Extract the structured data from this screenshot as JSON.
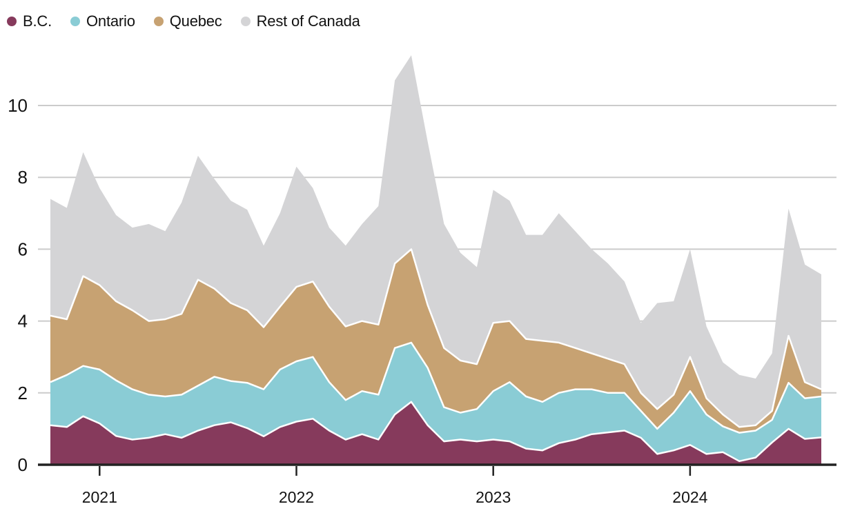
{
  "legend": {
    "items": [
      {
        "label": "B.C.",
        "color": "#863a5c"
      },
      {
        "label": "Ontario",
        "color": "#8accd5"
      },
      {
        "label": "Quebec",
        "color": "#c7a272"
      },
      {
        "label": "Rest of Canada",
        "color": "#d4d4d6"
      }
    ]
  },
  "chart_data": {
    "type": "area",
    "stacked": true,
    "title": "",
    "xlabel": "",
    "ylabel": "",
    "ylim": [
      0,
      11.5
    ],
    "yticks": [
      0,
      2,
      4,
      6,
      8,
      10
    ],
    "grid": true,
    "legend_position": "top-left",
    "background": "#ffffff",
    "gridline_color": "#cbcbcb",
    "axis_color": "#222222",
    "text_color": "#131313",
    "x_ticks": [
      {
        "label": "2021",
        "month_index": 3
      },
      {
        "label": "2022",
        "month_index": 15
      },
      {
        "label": "2023",
        "month_index": 27
      },
      {
        "label": "2024",
        "month_index": 39
      }
    ],
    "months": [
      "Oct 2020",
      "Nov 2020",
      "Dec 2020",
      "Jan 2021",
      "Feb 2021",
      "Mar 2021",
      "Apr 2021",
      "May 2021",
      "Jun 2021",
      "Jul 2021",
      "Aug 2021",
      "Sep 2021",
      "Oct 2021",
      "Nov 2021",
      "Dec 2021",
      "Jan 2022",
      "Feb 2022",
      "Mar 2022",
      "Apr 2022",
      "May 2022",
      "Jun 2022",
      "Jul 2022",
      "Aug 2022",
      "Sep 2022",
      "Oct 2022",
      "Nov 2022",
      "Dec 2022",
      "Jan 2023",
      "Feb 2023",
      "Mar 2023",
      "Apr 2023",
      "May 2023",
      "Jun 2023",
      "Jul 2023",
      "Aug 2023",
      "Sep 2023",
      "Oct 2023",
      "Nov 2023",
      "Dec 2023",
      "Jan 2024",
      "Feb 2024",
      "Mar 2024",
      "Apr 2024",
      "May 2024",
      "Jun 2024",
      "Jul 2024",
      "Aug 2024",
      "Sep 2024"
    ],
    "series": [
      {
        "name": "B.C.",
        "color": "#863a5c",
        "values": [
          1.1,
          1.05,
          1.35,
          1.15,
          0.8,
          0.7,
          0.75,
          0.85,
          0.75,
          0.95,
          1.1,
          1.18,
          1.02,
          0.79,
          1.05,
          1.2,
          1.28,
          0.95,
          0.7,
          0.85,
          0.7,
          1.4,
          1.75,
          1.1,
          0.65,
          0.7,
          0.65,
          0.7,
          0.65,
          0.45,
          0.4,
          0.6,
          0.7,
          0.85,
          0.9,
          0.95,
          0.75,
          0.3,
          0.4,
          0.55,
          0.3,
          0.35,
          0.1,
          0.2,
          0.62,
          1.0,
          0.72,
          0.76
        ]
      },
      {
        "name": "Ontario",
        "color": "#8accd5",
        "values": [
          1.2,
          1.45,
          1.4,
          1.5,
          1.55,
          1.4,
          1.2,
          1.05,
          1.2,
          1.25,
          1.35,
          1.15,
          1.26,
          1.31,
          1.6,
          1.68,
          1.72,
          1.35,
          1.1,
          1.2,
          1.25,
          1.85,
          1.65,
          1.6,
          0.95,
          0.75,
          0.9,
          1.35,
          1.65,
          1.45,
          1.35,
          1.4,
          1.4,
          1.25,
          1.1,
          1.05,
          0.75,
          0.7,
          1.05,
          1.5,
          1.1,
          0.72,
          0.79,
          0.75,
          0.63,
          1.28,
          1.13,
          1.14
        ]
      },
      {
        "name": "Quebec",
        "color": "#c7a272",
        "values": [
          1.85,
          1.55,
          2.5,
          2.35,
          2.2,
          2.2,
          2.05,
          2.15,
          2.25,
          2.95,
          2.45,
          2.17,
          2.02,
          1.73,
          1.75,
          2.07,
          2.1,
          2.1,
          2.05,
          1.95,
          1.95,
          2.35,
          2.6,
          1.75,
          1.65,
          1.45,
          1.25,
          1.9,
          1.7,
          1.6,
          1.7,
          1.4,
          1.15,
          1.0,
          0.95,
          0.8,
          0.5,
          0.55,
          0.5,
          0.95,
          0.45,
          0.33,
          0.16,
          0.15,
          0.25,
          1.31,
          0.45,
          0.2
        ]
      },
      {
        "name": "Rest of Canada",
        "color": "#d4d4d6",
        "values": [
          3.25,
          3.1,
          3.45,
          2.7,
          2.4,
          2.3,
          2.7,
          2.45,
          3.1,
          3.45,
          3.05,
          2.85,
          2.8,
          2.27,
          2.6,
          3.35,
          2.6,
          2.2,
          2.25,
          2.7,
          3.3,
          5.1,
          5.4,
          4.55,
          3.45,
          3.0,
          2.7,
          3.7,
          3.35,
          2.9,
          2.95,
          3.6,
          3.25,
          2.9,
          2.65,
          2.3,
          1.95,
          2.95,
          2.6,
          3.0,
          2.0,
          1.45,
          1.45,
          1.3,
          1.6,
          3.54,
          3.27,
          3.2
        ]
      }
    ]
  }
}
